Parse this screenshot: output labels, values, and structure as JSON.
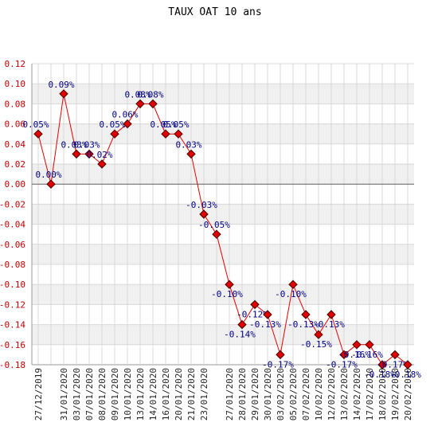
{
  "chart_data": {
    "type": "line",
    "title": "TAUX OAT 10 ans",
    "categories": [
      "27/12/2019",
      null,
      "31/01/2020",
      "03/01/2020",
      "07/01/2020",
      "08/01/2020",
      "09/01/2020",
      "10/01/2020",
      "13/01/2020",
      "14/01/2020",
      "16/01/2020",
      "20/01/2020",
      "21/01/2020",
      "23/01/2020",
      null,
      "27/01/2020",
      "28/01/2020",
      "29/01/2020",
      "30/01/2020",
      "03/02/2020",
      "05/02/2020",
      "07/02/2020",
      "10/02/2020",
      "12/02/2020",
      "13/02/2020",
      "14/02/2020",
      "17/02/2020",
      "18/02/2020",
      "19/02/2020",
      "20/02/2020"
    ],
    "series": [
      {
        "color": "#e00000",
        "values": [
          0.05,
          0.0,
          0.09,
          0.03,
          0.03,
          0.02,
          0.05,
          0.06,
          0.08,
          0.08,
          0.05,
          0.05,
          0.03,
          -0.03,
          -0.05,
          -0.1,
          -0.14,
          -0.12,
          -0.13,
          -0.17,
          -0.1,
          -0.13,
          -0.15,
          -0.13,
          -0.17,
          -0.16,
          -0.16,
          -0.18,
          -0.17,
          -0.18
        ],
        "value_labels": [
          "0.05%",
          "0.00%",
          "0.09%",
          "0.03%",
          "0.03%",
          "0.02%",
          "0.05%",
          "0.06%",
          "0.08%",
          "0.08%",
          "0.05%",
          "0.05%",
          "0.03%",
          "-0.03%",
          "-0.05%",
          "-0.10%",
          "-0.14%",
          "-0.12%",
          "-0.13%",
          "-0.17%",
          "-0.10%",
          "-0.13%",
          "-0.15%",
          "-0.13%",
          "-0.17%",
          "-0.16%",
          "-0.16%",
          "-0.18%",
          "-0.17%",
          "-0.18%"
        ]
      }
    ],
    "ylim": [
      -0.18,
      0.12
    ],
    "yticks": [
      0.12,
      {
        "value": 0.1,
        "label": "0.10"
      },
      0.08,
      0.06,
      0.04,
      0.02,
      {
        "value": 0,
        "label": "0.00"
      },
      -0.02,
      -0.04,
      -0.06,
      -0.08,
      {
        "value": -0.1,
        "label": "-0.10"
      },
      -0.12,
      -0.14,
      -0.16,
      -0.18
    ],
    "grid": true
  }
}
